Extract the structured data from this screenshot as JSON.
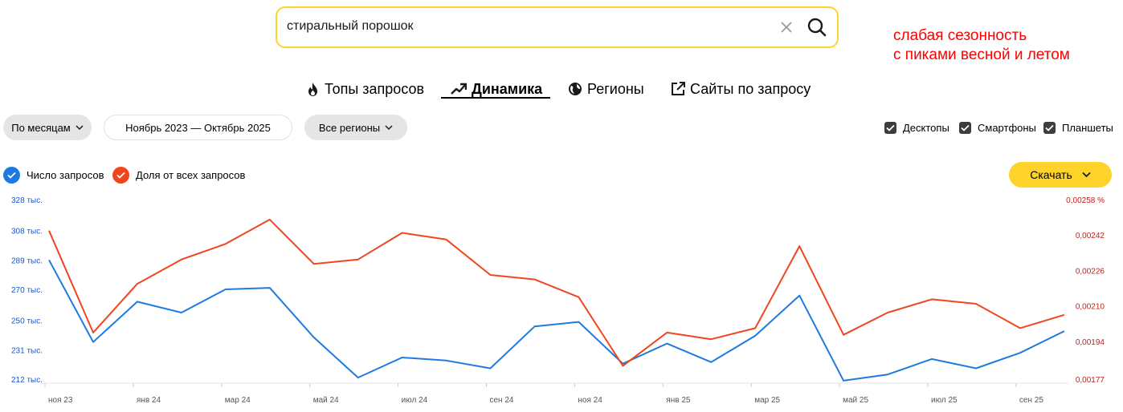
{
  "search": {
    "query": "стиральный порошок"
  },
  "annotation": {
    "line1": "слабая сезонность",
    "line2": "с пиками весной и летом"
  },
  "tabs": [
    {
      "label": "Топы запросов",
      "icon": "fire-icon",
      "active": false
    },
    {
      "label": "Динамика",
      "icon": "trend-icon",
      "active": true
    },
    {
      "label": "Регионы",
      "icon": "globe-icon",
      "active": false
    },
    {
      "label": "Сайты по запросу",
      "icon": "external-link-icon",
      "active": false
    }
  ],
  "filters": {
    "grouping": "По месяцам",
    "period": "Ноябрь 2023 — Октябрь 2025",
    "region": "Все регионы"
  },
  "devices": [
    {
      "label": "Десктопы",
      "checked": true
    },
    {
      "label": "Смартфоны",
      "checked": true
    },
    {
      "label": "Планшеты",
      "checked": true
    }
  ],
  "legend": [
    {
      "label": "Число запросов",
      "color": "#1f7ae0"
    },
    {
      "label": "Доля от всех запросов",
      "color": "#f0461e"
    }
  ],
  "download": {
    "label": "Скачать"
  },
  "chart_data": {
    "type": "line",
    "x_tick_labels": [
      "ноя 23",
      "янв 24",
      "мар 24",
      "май 24",
      "июл 24",
      "сен 24",
      "ноя 24",
      "янв 25",
      "мар 25",
      "май 25",
      "июл 25",
      "сен 25"
    ],
    "y_left_ticks": [
      "328 тыс.",
      "308 тыс.",
      "289 тыс.",
      "270 тыс.",
      "250 тыс.",
      "231 тыс.",
      "212 тыс."
    ],
    "y_left_ticks_values": [
      328,
      308,
      289,
      270,
      250,
      231,
      212
    ],
    "y_right_ticks": [
      "0,00258 %",
      "0,00242",
      "0,00226",
      "0,00210",
      "0,00194",
      "0,00177"
    ],
    "y_right_ticks_values": [
      0.00258,
      0.00242,
      0.00226,
      0.0021,
      0.00194,
      0.00177
    ],
    "series": [
      {
        "name": "Число запросов",
        "color": "#1f7ae0",
        "axis": "left",
        "values": [
          289,
          236,
          262,
          255,
          270,
          271,
          239,
          213,
          226,
          224,
          219,
          246,
          249,
          222,
          235,
          223,
          240,
          266,
          211,
          215,
          225,
          219,
          229,
          243
        ]
      },
      {
        "name": "Доля от всех запросов",
        "color": "#f0461e",
        "axis": "right",
        "values": [
          0.00244,
          0.00198,
          0.0022,
          0.00231,
          0.00238,
          0.00249,
          0.00229,
          0.00231,
          0.00243,
          0.0024,
          0.00224,
          0.00222,
          0.00214,
          0.00183,
          0.00198,
          0.00195,
          0.002,
          0.00237,
          0.00197,
          0.00207,
          0.00213,
          0.00211,
          0.002,
          0.00206
        ]
      }
    ]
  }
}
